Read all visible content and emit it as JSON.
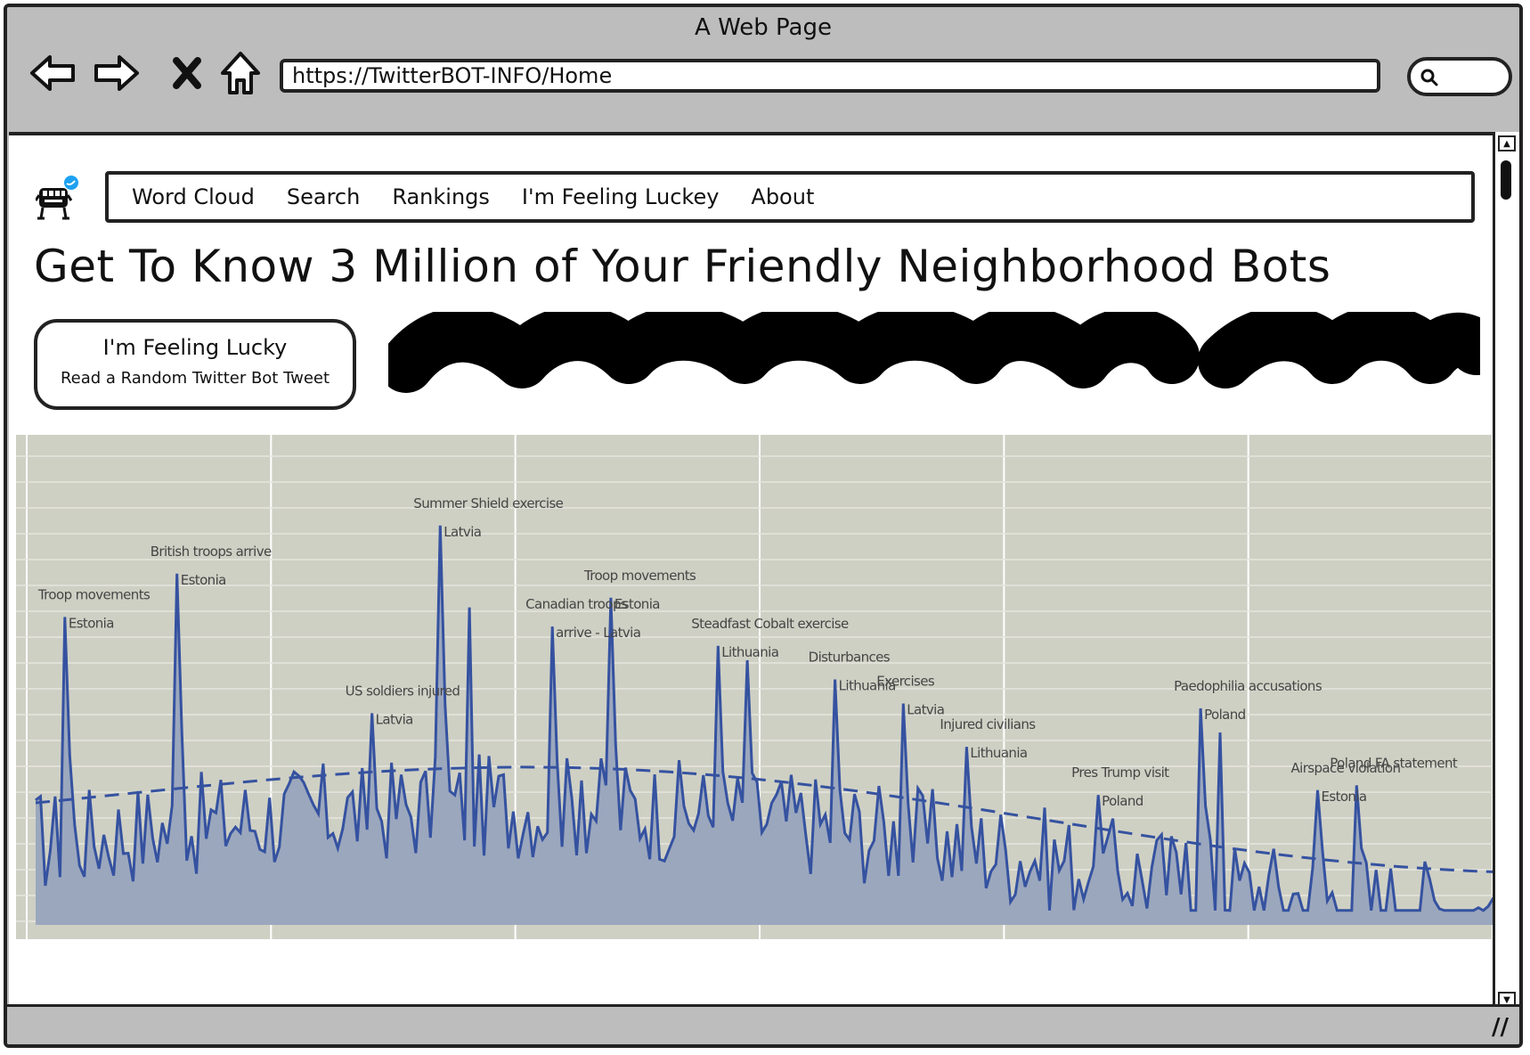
{
  "window": {
    "title": "A Web Page"
  },
  "browser": {
    "url": "https://TwitterBOT-INFO/Home",
    "icons": [
      "back-arrow-icon",
      "forward-arrow-icon",
      "close-icon",
      "home-icon",
      "search-icon"
    ]
  },
  "nav": {
    "items": [
      {
        "label": "Word Cloud"
      },
      {
        "label": "Search"
      },
      {
        "label": "Rankings"
      },
      {
        "label": "I'm Feeling Luckey"
      },
      {
        "label": "About"
      }
    ]
  },
  "headline": "Get To Know 3 Million of Your Friendly Neighborhood Bots",
  "lucky_button": {
    "title": "I'm Feeling Lucky",
    "subtitle": "Read a Random Twitter Bot Tweet"
  },
  "colors": {
    "chrome": "#bdbdbd",
    "chart_bg": "#cfd0c4",
    "area_fill": "#9ba7bd",
    "line": "#3552a0",
    "twitter_blue": "#1da1f2"
  },
  "chart_data": {
    "type": "area",
    "annotations": [
      {
        "label": "Troop movements",
        "sublabel": "Estonia",
        "x": 6,
        "y": 64
      },
      {
        "label": "British troops arrive",
        "sublabel": "Estonia",
        "x": 29,
        "y": 73
      },
      {
        "label": "US soldiers injured",
        "sublabel": "Latvia",
        "x": 69,
        "y": 44
      },
      {
        "label": "Summer Shield exercise",
        "sublabel": "Latvia",
        "x": 83,
        "y": 83
      },
      {
        "label": "Canadian troops",
        "sublabel": "arrive - Latvia",
        "x": 106,
        "y": 62
      },
      {
        "label": "Troop movements",
        "sublabel": "Estonia",
        "x": 118,
        "y": 68
      },
      {
        "label": "Steadfast Cobalt exercise",
        "sublabel": "Lithuania",
        "x": 140,
        "y": 58
      },
      {
        "label": "Disturbances",
        "sublabel": "Lithuania",
        "x": 164,
        "y": 51
      },
      {
        "label": "Exercises",
        "sublabel": "Latvia",
        "x": 178,
        "y": 46
      },
      {
        "label": "Injured civilians",
        "sublabel": "Lithuania",
        "x": 191,
        "y": 37
      },
      {
        "label": "Pres Trump visit",
        "sublabel": "Poland",
        "x": 218,
        "y": 27
      },
      {
        "label": "Paedophilia accusations",
        "sublabel": "Poland",
        "x": 239,
        "y": 45
      },
      {
        "label": "Airspace violation",
        "sublabel": "Estonia",
        "x": 263,
        "y": 28
      },
      {
        "label": "Poland FA statement",
        "sublabel": "",
        "x": 271,
        "y": 29
      }
    ],
    "ylim": [
      0,
      100
    ],
    "xlim": [
      0,
      300
    ],
    "grid": true
  }
}
